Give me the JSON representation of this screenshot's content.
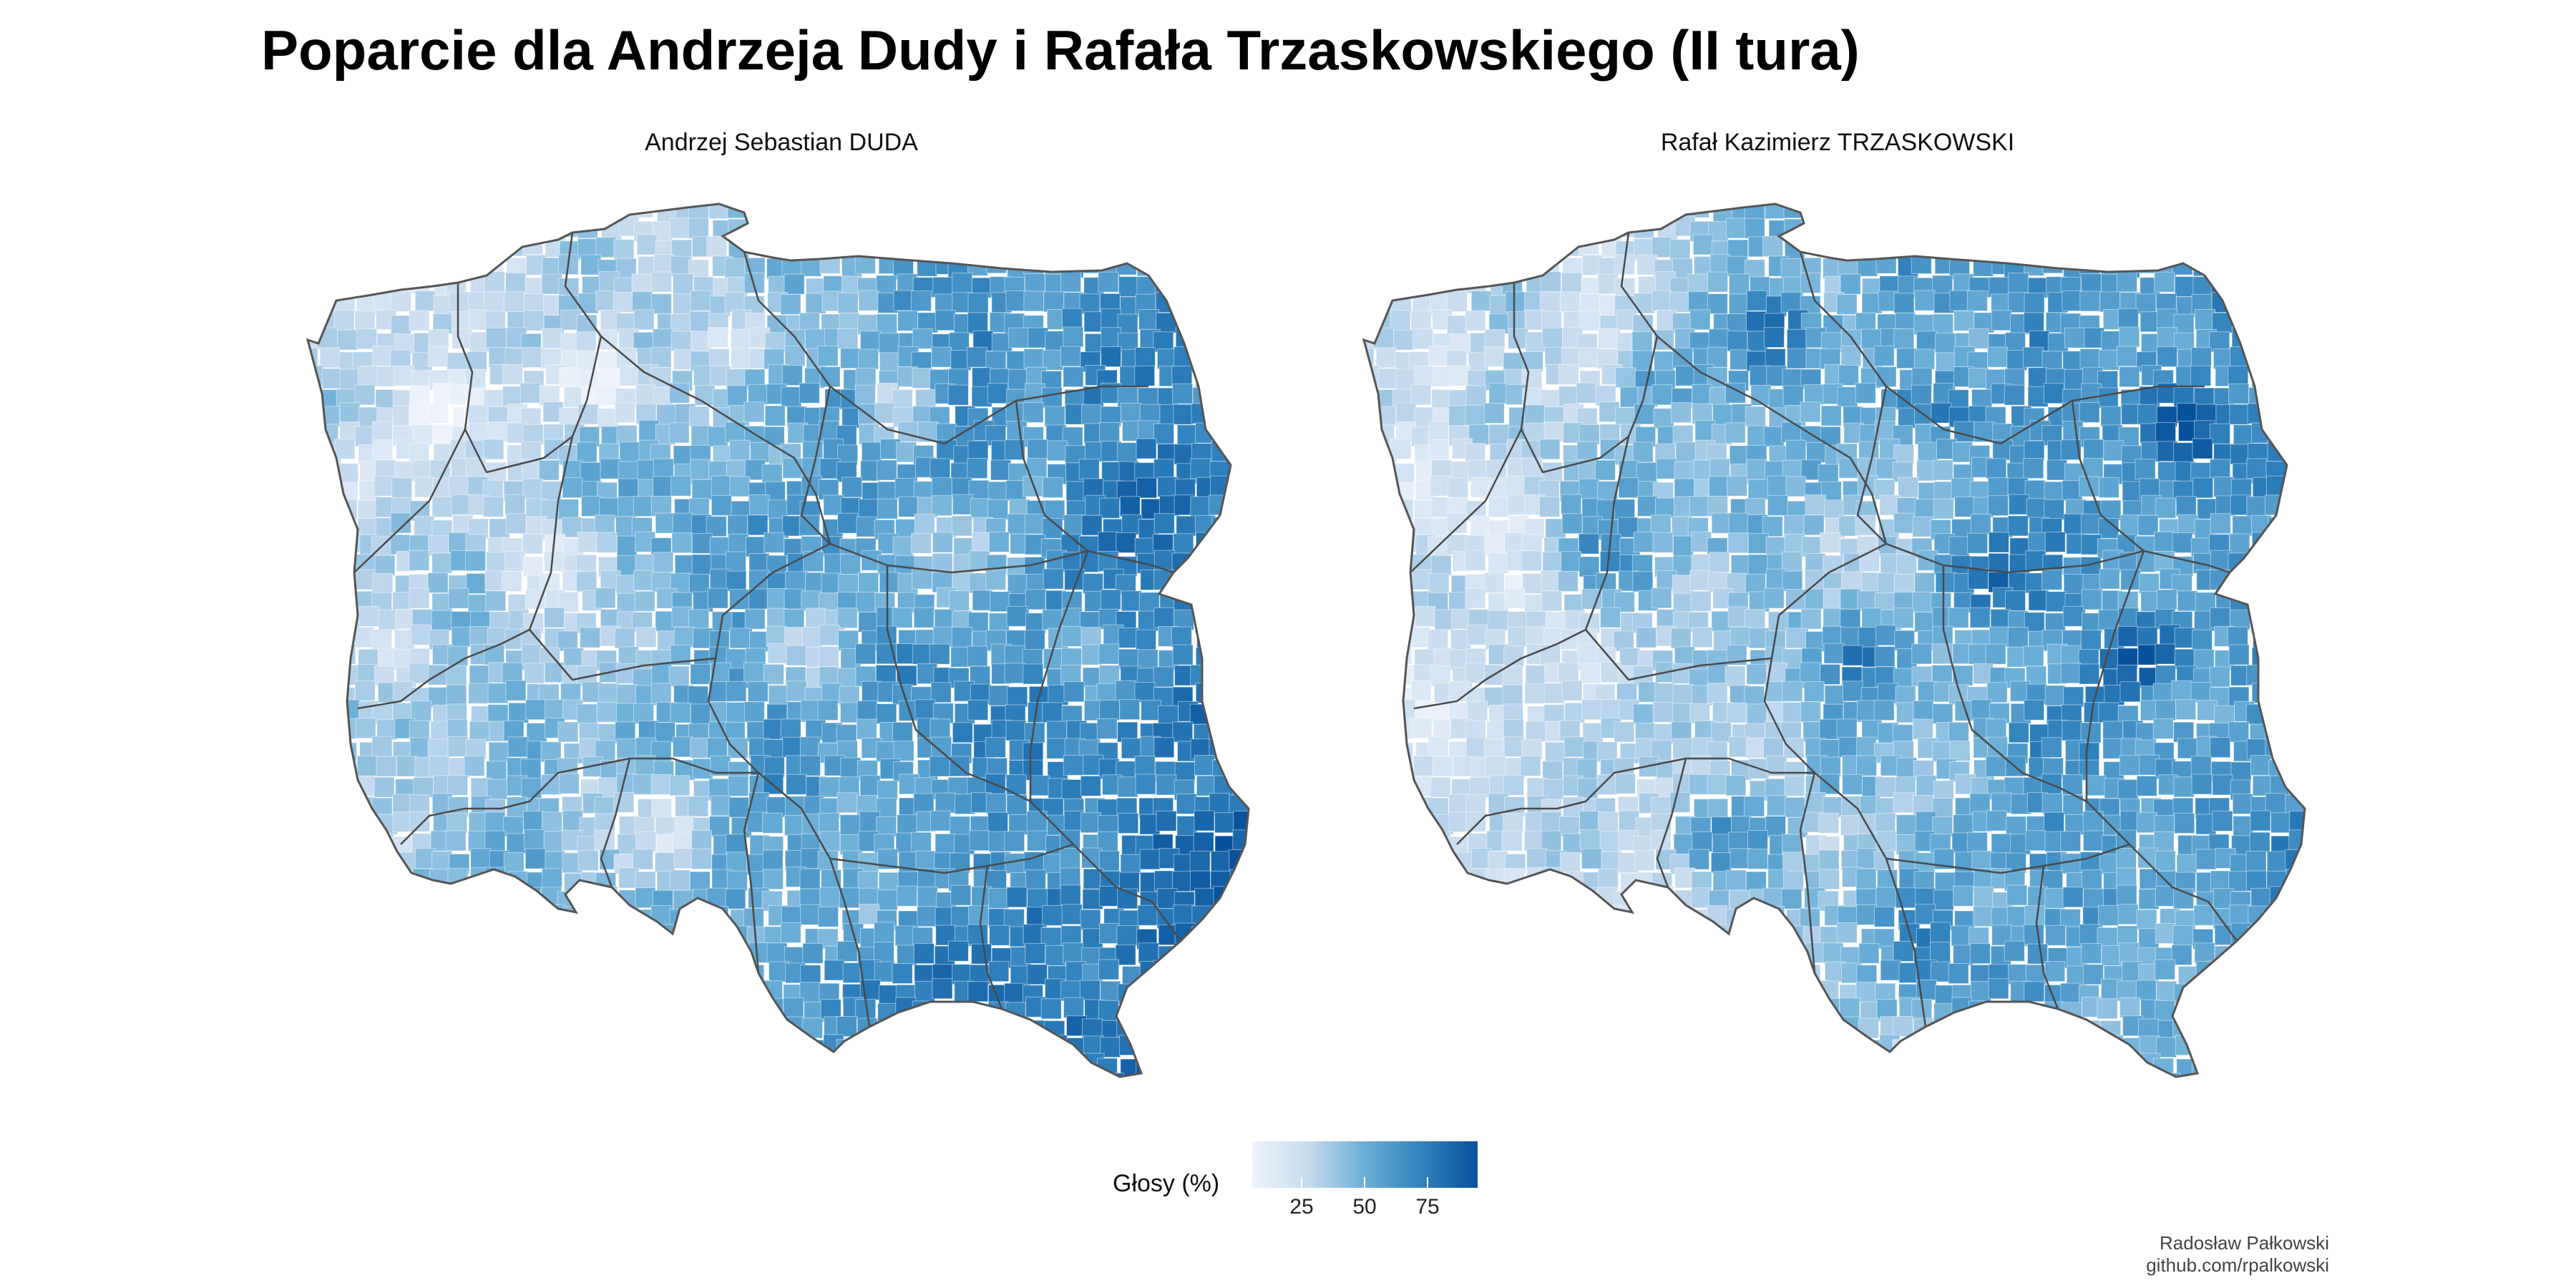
{
  "title": "Poparcie dla Andrzeja Dudy i Rafała Trzaskowskiego (II tura)",
  "panels": [
    {
      "label": "Andrzej Sebastian DUDA",
      "map": "Poland municipalities (gminy) choropleth",
      "shade_bias": 0.35,
      "center_dark": "east",
      "cities_light": true
    },
    {
      "label": "Rafał Kazimierz TRZASKOWSKI",
      "map": "Poland municipalities (gminy) choropleth",
      "shade_bias": -0.35,
      "center_dark": "west",
      "cities_light": false
    }
  ],
  "legend": {
    "title": "Głosy (%)",
    "ticks": [
      "25",
      "50",
      "75"
    ],
    "tick_values": [
      25,
      50,
      75
    ],
    "range": [
      5,
      95
    ],
    "colors": [
      "#eef3fb",
      "#c6dbef",
      "#6baed6",
      "#3182bd",
      "#08519c"
    ]
  },
  "credit": {
    "author": "Radosław Pałkowski",
    "link": "github.com/rpalkowski"
  }
}
